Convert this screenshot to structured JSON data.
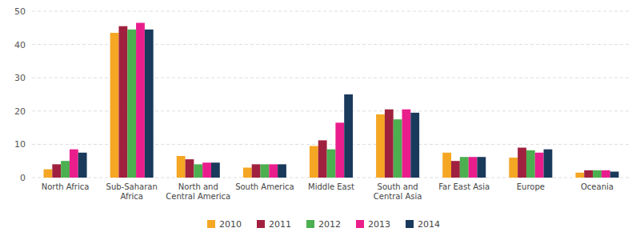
{
  "chart_data": {
    "type": "bar",
    "categories": [
      "North Africa",
      "Sub-Saharan\nAfrica",
      "North and\nCentral America",
      "South America",
      "Middle East",
      "South and\nCentral Asia",
      "Far East Asia",
      "Europe",
      "Oceania"
    ],
    "series": [
      {
        "name": "2010",
        "color": "#F5A623",
        "values": [
          2.5,
          43.5,
          6.5,
          3.0,
          9.5,
          19.0,
          7.5,
          6.0,
          1.5
        ]
      },
      {
        "name": "2011",
        "color": "#A0213F",
        "values": [
          4.0,
          45.5,
          5.5,
          4.0,
          11.2,
          20.5,
          5.0,
          9.0,
          2.2
        ]
      },
      {
        "name": "2012",
        "color": "#4CAF50",
        "values": [
          5.0,
          44.5,
          4.0,
          4.0,
          8.5,
          17.5,
          6.2,
          8.2,
          2.2
        ]
      },
      {
        "name": "2013",
        "color": "#E91E8C",
        "values": [
          8.5,
          46.5,
          4.5,
          4.0,
          16.5,
          20.5,
          6.2,
          7.5,
          2.2
        ]
      },
      {
        "name": "2014",
        "color": "#1A3A5C",
        "values": [
          7.5,
          44.5,
          4.5,
          4.0,
          25.0,
          19.5,
          6.2,
          8.5,
          1.8
        ]
      }
    ],
    "ylim": [
      0,
      50
    ],
    "yticks": [
      0,
      10,
      20,
      30,
      40,
      50
    ],
    "grid": true,
    "legend": "bottom"
  }
}
